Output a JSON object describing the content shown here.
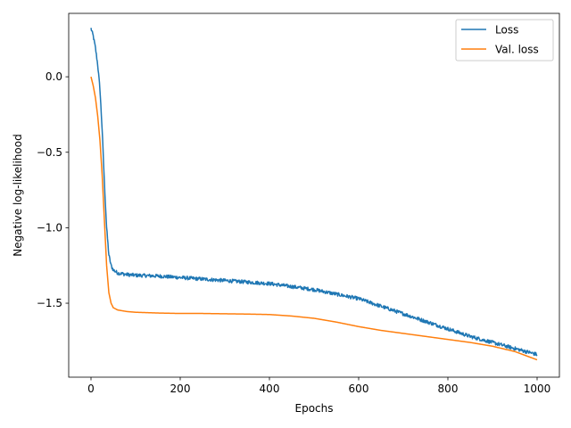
{
  "chart_data": {
    "type": "line",
    "title": "",
    "xlabel": "Epochs",
    "ylabel": "Negative log-likelihood",
    "xlim": [
      -50,
      1050
    ],
    "ylim": [
      -1.99,
      0.42
    ],
    "xticks": [
      0,
      200,
      400,
      600,
      800,
      1000
    ],
    "xtick_labels": [
      "0",
      "200",
      "400",
      "600",
      "800",
      "1000"
    ],
    "yticks": [
      0.0,
      -0.5,
      -1.0,
      -1.5
    ],
    "ytick_labels": [
      "0.0",
      "−0.5",
      "−1.0",
      "−1.5"
    ],
    "grid": false,
    "legend_position": "top-right",
    "series": [
      {
        "name": "Loss",
        "color": "#1f77b4",
        "noise": 0.012,
        "x": [
          0,
          5,
          10,
          15,
          20,
          25,
          30,
          35,
          40,
          45,
          50,
          60,
          80,
          100,
          150,
          200,
          250,
          300,
          350,
          400,
          450,
          500,
          550,
          600,
          650,
          700,
          750,
          800,
          850,
          900,
          950,
          1000
        ],
        "y": [
          0.32,
          0.27,
          0.19,
          0.08,
          -0.08,
          -0.35,
          -0.7,
          -1.0,
          -1.18,
          -1.25,
          -1.28,
          -1.3,
          -1.31,
          -1.315,
          -1.32,
          -1.33,
          -1.34,
          -1.35,
          -1.36,
          -1.37,
          -1.39,
          -1.41,
          -1.44,
          -1.47,
          -1.52,
          -1.57,
          -1.62,
          -1.67,
          -1.72,
          -1.76,
          -1.8,
          -1.84
        ]
      },
      {
        "name": "Val. loss",
        "color": "#ff7f0e",
        "noise": 0,
        "x": [
          0,
          5,
          10,
          15,
          20,
          25,
          30,
          35,
          40,
          45,
          50,
          60,
          80,
          100,
          150,
          200,
          250,
          300,
          350,
          400,
          450,
          500,
          550,
          600,
          650,
          700,
          750,
          800,
          850,
          900,
          950,
          1000
        ],
        "y": [
          0.0,
          -0.06,
          -0.14,
          -0.26,
          -0.42,
          -0.65,
          -0.95,
          -1.25,
          -1.43,
          -1.5,
          -1.53,
          -1.545,
          -1.555,
          -1.56,
          -1.565,
          -1.568,
          -1.568,
          -1.57,
          -1.572,
          -1.575,
          -1.585,
          -1.6,
          -1.625,
          -1.655,
          -1.68,
          -1.7,
          -1.72,
          -1.74,
          -1.76,
          -1.785,
          -1.82,
          -1.875
        ]
      }
    ]
  }
}
